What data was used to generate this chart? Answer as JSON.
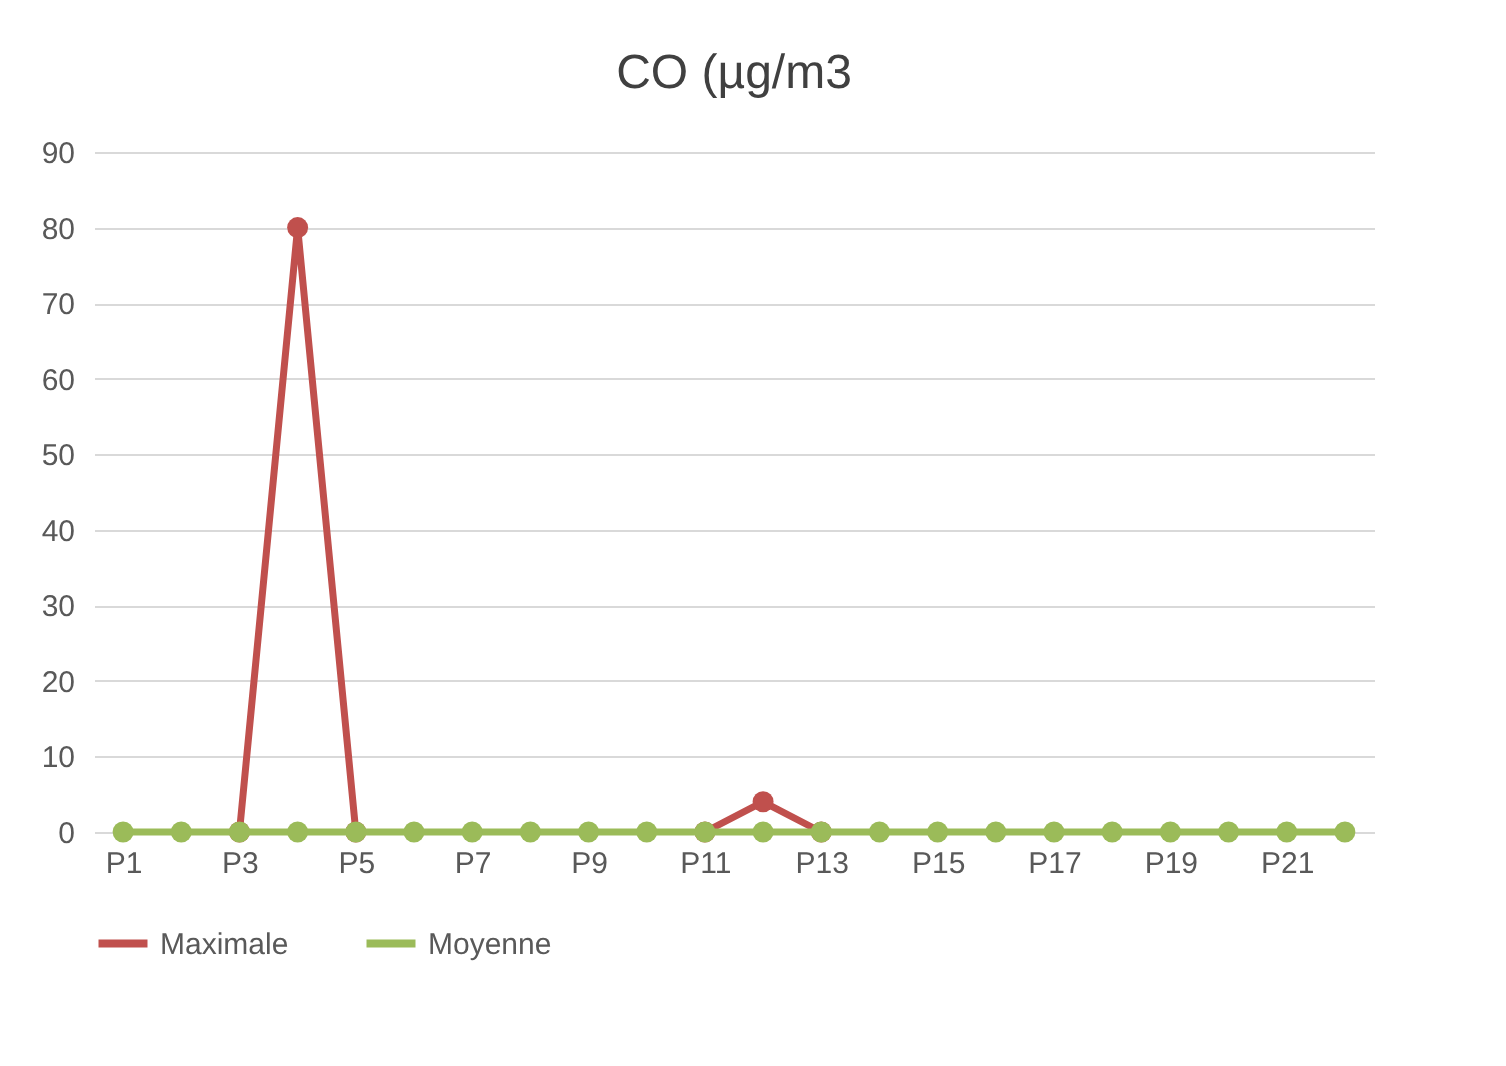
{
  "chart_data": {
    "type": "line",
    "title": "CO (µg/m3",
    "categories": [
      "P1",
      null,
      "P3",
      null,
      "P5",
      null,
      "P7",
      null,
      "P9",
      null,
      "P11",
      null,
      "P13",
      null,
      "P15",
      null,
      "P17",
      null,
      "P19",
      null,
      "P21",
      null
    ],
    "series": [
      {
        "name": "Maximale",
        "color": "#c0504d",
        "values": [
          null,
          null,
          0,
          80,
          0,
          null,
          null,
          null,
          null,
          null,
          0,
          4,
          0,
          null,
          null,
          null,
          null,
          null,
          null,
          null,
          null,
          null
        ]
      },
      {
        "name": "Moyenne",
        "color": "#9bbb59",
        "values": [
          0,
          0,
          0,
          0,
          0,
          0,
          0,
          0,
          0,
          0,
          0,
          0,
          0,
          0,
          0,
          0,
          0,
          0,
          0,
          0,
          0,
          0
        ]
      }
    ],
    "ylim": [
      0,
      90
    ],
    "yticks": [
      0,
      10,
      20,
      30,
      40,
      50,
      60,
      70,
      80,
      90
    ],
    "grid": "y",
    "legend": "bottom",
    "marker": "circle",
    "line_style": "solid"
  }
}
